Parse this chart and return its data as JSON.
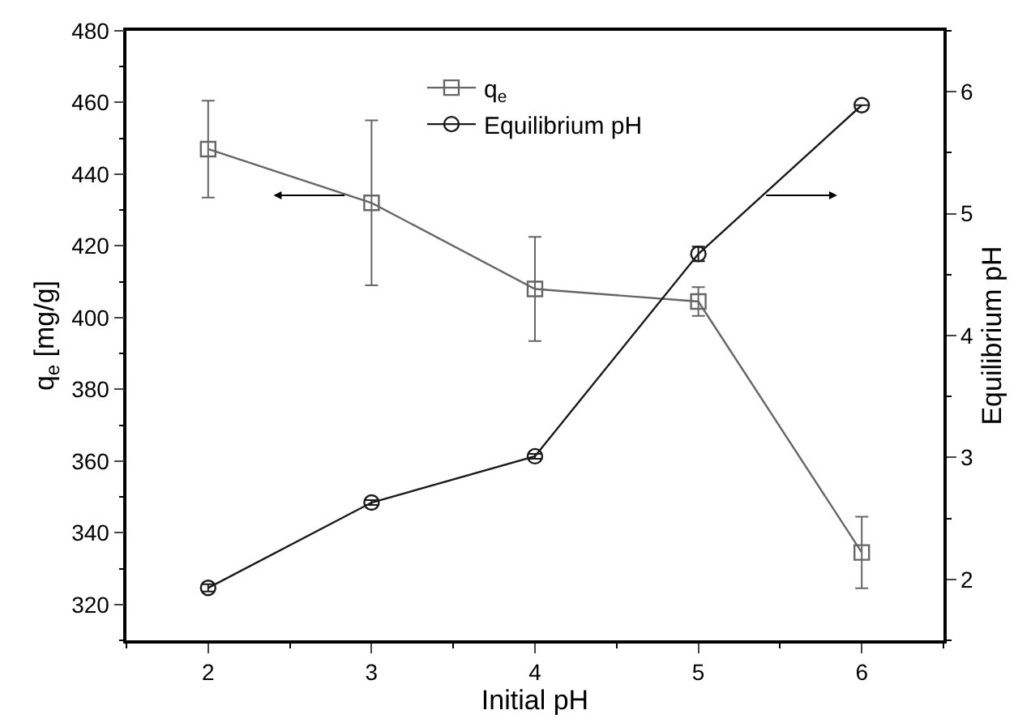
{
  "chart_data": {
    "type": "line",
    "xlabel": "Initial pH",
    "ylabel": "q$_{e}$ [mg/g]",
    "y2label": "Equilibrium pH",
    "x": [
      2,
      3,
      4,
      5,
      6
    ],
    "series": [
      {
        "name": "q$_{e}$",
        "color": "#666666",
        "marker": "square",
        "values": [
          447,
          432,
          408,
          404.5,
          334.5
        ],
        "errors": [
          13.5,
          23,
          14.5,
          4,
          10
        ]
      },
      {
        "name": "Equilibrium pH",
        "color": "#1a1a1a",
        "marker": "circle",
        "axis": "y2",
        "values": [
          1.93,
          2.63,
          3.01,
          4.67,
          5.89
        ],
        "errors": [
          0.03,
          0.02,
          0.02,
          0.06,
          null
        ]
      }
    ],
    "xlim": [
      1.5,
      6.5
    ],
    "xticks": [
      2,
      3,
      4,
      5,
      6
    ],
    "ylim": [
      310,
      480
    ],
    "yticks": [
      320,
      340,
      360,
      380,
      400,
      420,
      440,
      460,
      480
    ],
    "y2lim": [
      1.5,
      6.5
    ],
    "y2ticks": [
      2,
      3,
      4,
      5,
      6
    ],
    "grid": false,
    "legend": "top"
  }
}
